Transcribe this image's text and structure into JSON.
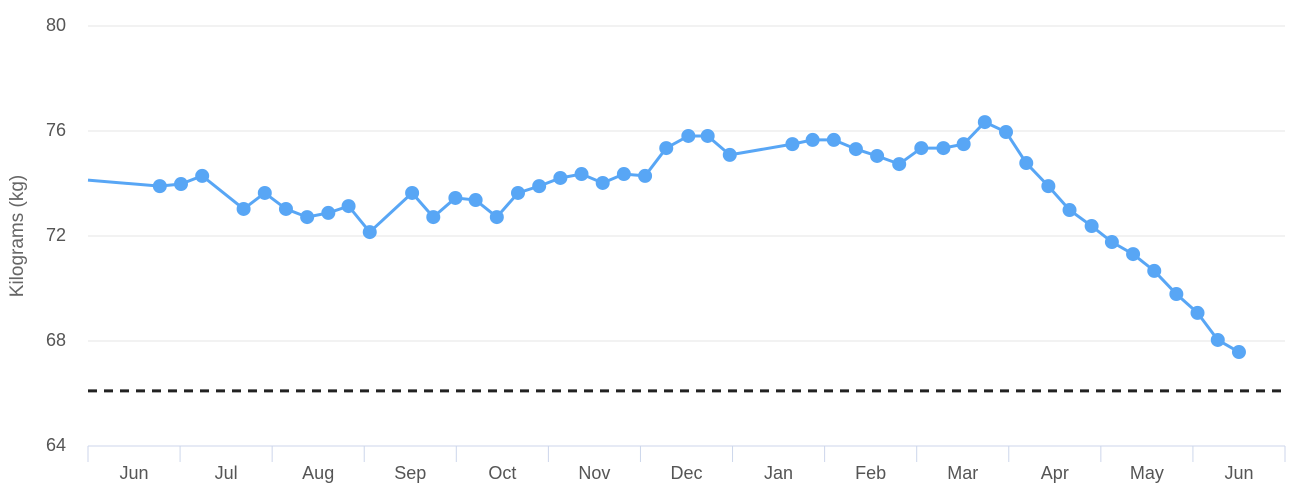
{
  "chart_data": {
    "type": "line",
    "y_title": "Kilograms (kg)",
    "xlim": [
      0,
      13
    ],
    "xticks": [
      {
        "value": 0.5,
        "label": "Jun"
      },
      {
        "value": 1.5,
        "label": "Jul"
      },
      {
        "value": 2.5,
        "label": "Aug"
      },
      {
        "value": 3.5,
        "label": "Sep"
      },
      {
        "value": 4.5,
        "label": "Oct"
      },
      {
        "value": 5.5,
        "label": "Nov"
      },
      {
        "value": 6.5,
        "label": "Dec"
      },
      {
        "value": 7.5,
        "label": "Jan"
      },
      {
        "value": 8.5,
        "label": "Feb"
      },
      {
        "value": 9.5,
        "label": "Mar"
      },
      {
        "value": 10.5,
        "label": "Apr"
      },
      {
        "value": 11.5,
        "label": "May"
      },
      {
        "value": 12.5,
        "label": "Jun"
      }
    ],
    "ylim": [
      64,
      80
    ],
    "yticks": [
      64,
      68,
      72,
      76,
      80
    ],
    "grid": true,
    "series": [
      {
        "color": "#58a6f5",
        "x": [
          0,
          0.78,
          1.01,
          1.24,
          1.69,
          1.92,
          2.15,
          2.38,
          2.61,
          2.83,
          3.06,
          3.52,
          3.75,
          3.99,
          4.21,
          4.44,
          4.67,
          4.9,
          5.13,
          5.36,
          5.59,
          5.82,
          6.05,
          6.28,
          6.52,
          6.73,
          6.97,
          7.65,
          7.87,
          8.1,
          8.34,
          8.57,
          8.81,
          9.05,
          9.29,
          9.51,
          9.74,
          9.97,
          10.19,
          10.43,
          10.66,
          10.9,
          11.12,
          11.35,
          11.58,
          11.82,
          12.05,
          12.27,
          12.5
        ],
        "values": [
          74.13,
          73.9,
          73.98,
          74.29,
          73.03,
          73.64,
          73.03,
          72.72,
          72.88,
          73.14,
          72.15,
          73.64,
          72.72,
          73.45,
          73.37,
          72.72,
          73.64,
          73.9,
          74.21,
          74.36,
          74.02,
          74.36,
          74.29,
          75.35,
          75.81,
          75.81,
          75.09,
          75.5,
          75.66,
          75.66,
          75.31,
          75.05,
          74.74,
          75.35,
          75.35,
          75.5,
          76.34,
          75.96,
          74.78,
          73.9,
          72.99,
          72.38,
          71.77,
          71.31,
          70.67,
          69.79,
          69.07,
          68.04,
          67.58
        ]
      }
    ],
    "plot_lines": [
      {
        "value": 66.1,
        "color": "#222222",
        "dashed": true
      }
    ]
  }
}
